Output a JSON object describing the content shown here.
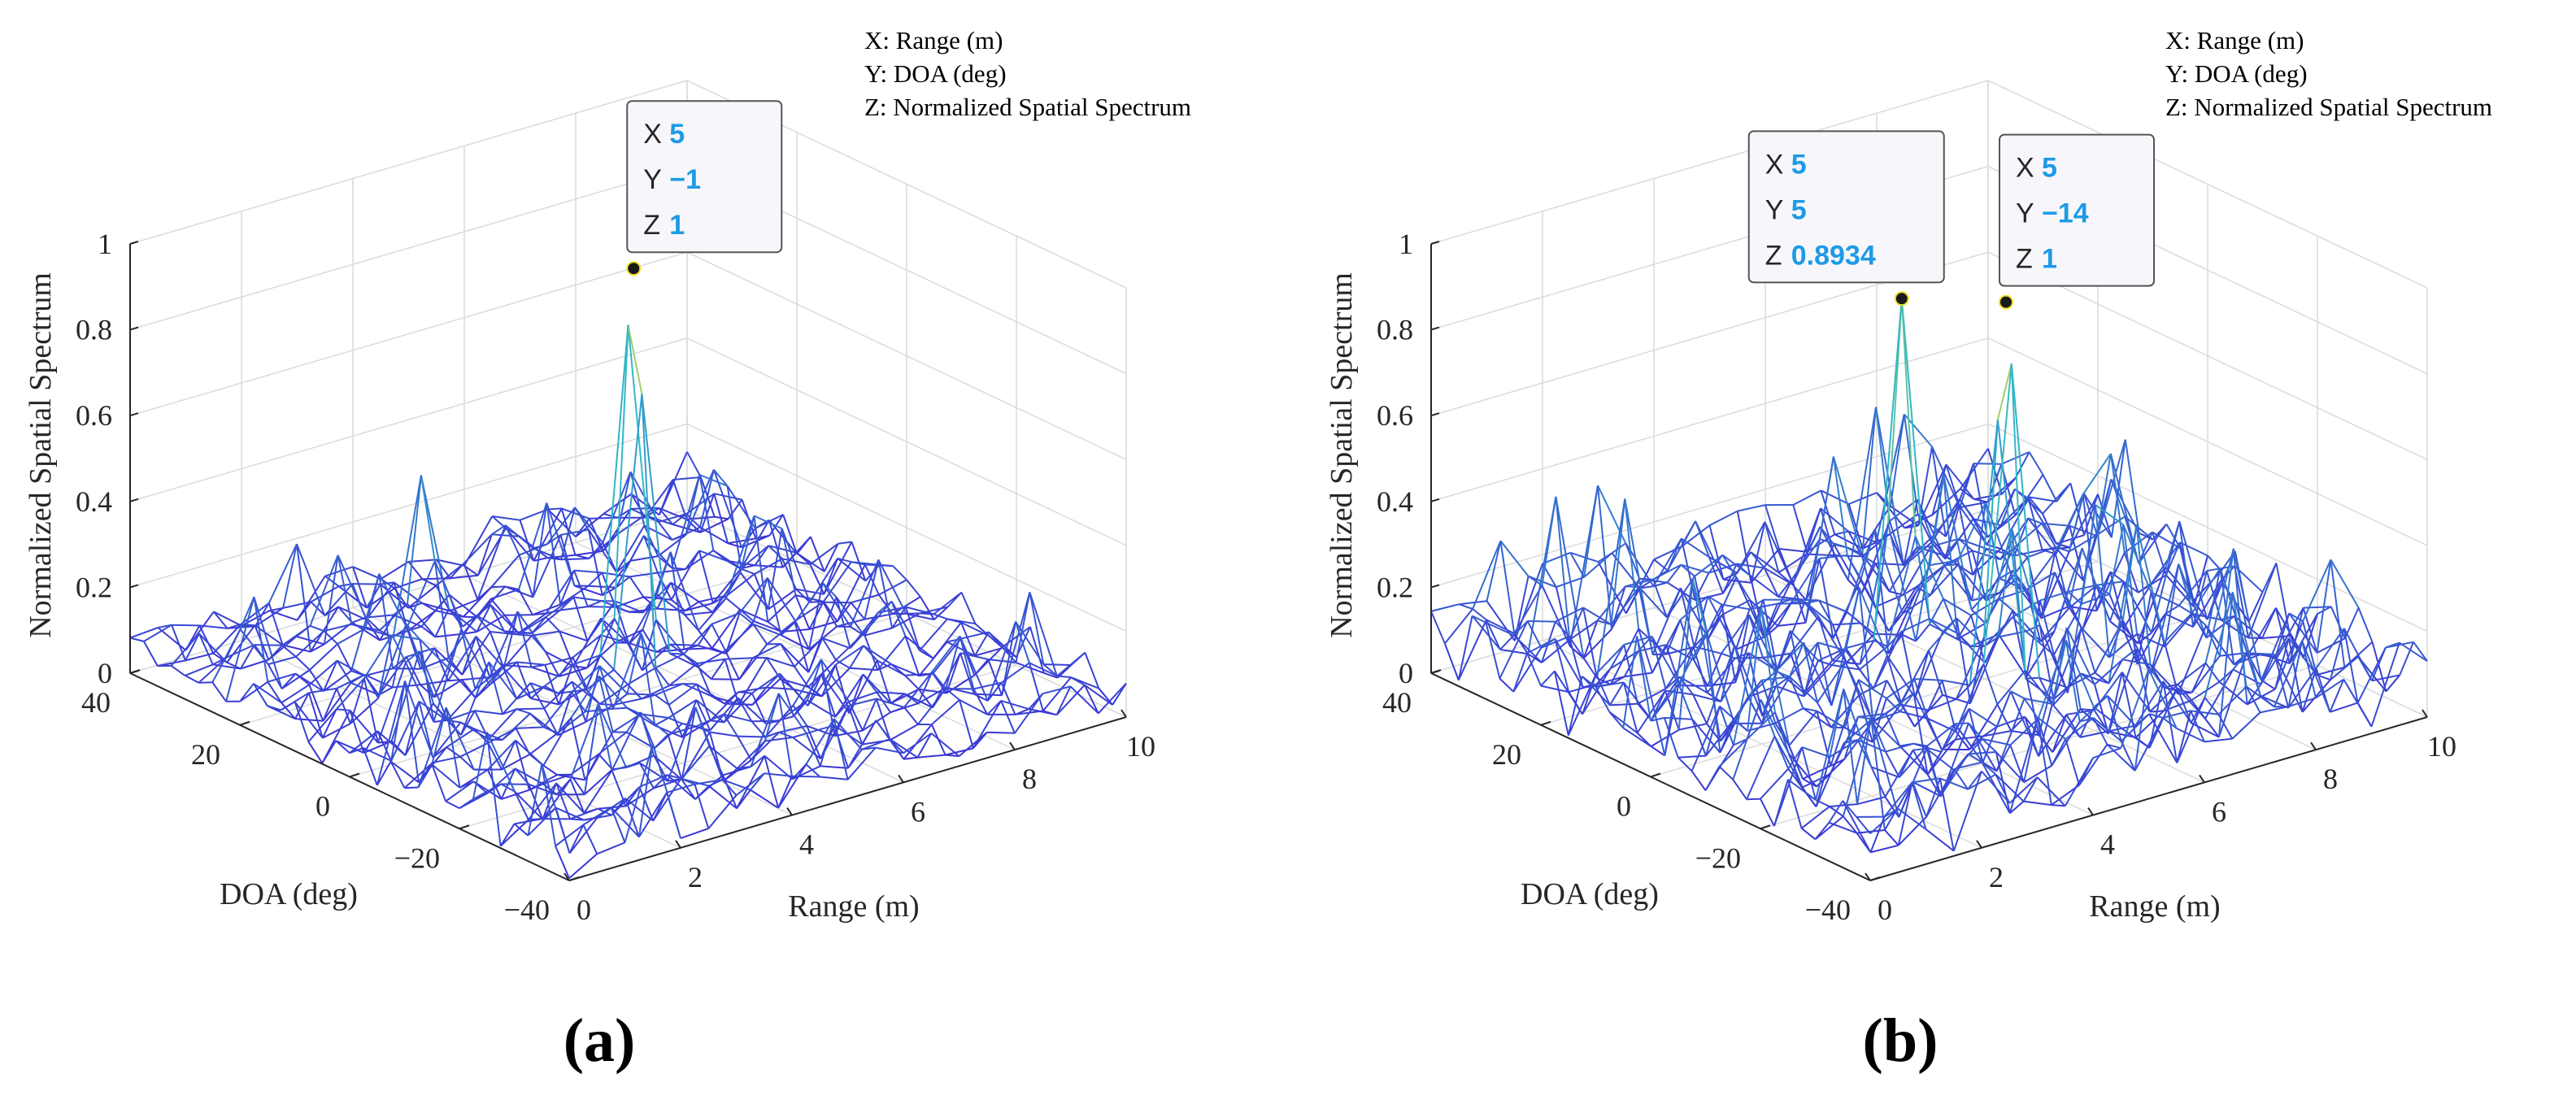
{
  "colors": {
    "low": "#3b2fd6",
    "mid": "#2fb7c8",
    "high": "#f1e12e",
    "datatip_value": "#1e9ae6"
  },
  "chart_data": [
    {
      "id": "a",
      "type": "mesh3d",
      "panel_label": "(a)",
      "legend": [
        "X: Range (m)",
        "Y: DOA (deg)",
        "Z: Normalized Spatial Spectrum"
      ],
      "xlabel": "Range (m)",
      "ylabel": "DOA (deg)",
      "zlabel": "Normalized Spatial Spectrum",
      "xlim": [
        0,
        10
      ],
      "ylim": [
        -40,
        40
      ],
      "zlim": [
        0,
        1
      ],
      "xticks": [
        "0",
        "2",
        "4",
        "6",
        "8",
        "10"
      ],
      "yticks": [
        "40",
        "20",
        "0",
        "−20",
        "−40"
      ],
      "zticks": [
        "0",
        "0.2",
        "0.4",
        "0.6",
        "0.8",
        "1"
      ],
      "peaks": [
        {
          "range": 5,
          "doa": -1,
          "value": 1.0
        },
        {
          "range": 3.5,
          "doa": 22,
          "value": 0.45
        }
      ],
      "noise_floor": 0.12,
      "datatips": [
        {
          "range": 5,
          "doa": -1,
          "value": 1,
          "label": [
            "X",
            "Y",
            "Z"
          ],
          "text": [
            "5",
            "−1",
            "1"
          ]
        }
      ]
    },
    {
      "id": "b",
      "type": "mesh3d",
      "panel_label": "(b)",
      "legend": [
        "X: Range (m)",
        "Y: DOA (deg)",
        "Z: Normalized Spatial Spectrum"
      ],
      "xlabel": "Range (m)",
      "ylabel": "DOA (deg)",
      "zlabel": "Normalized Spatial Spectrum",
      "xlim": [
        0,
        10
      ],
      "ylim": [
        -40,
        40
      ],
      "zlim": [
        0,
        1
      ],
      "xticks": [
        "0",
        "2",
        "4",
        "6",
        "8",
        "10"
      ],
      "yticks": [
        "40",
        "20",
        "0",
        "−20",
        "−40"
      ],
      "zticks": [
        "0",
        "0.2",
        "0.4",
        "0.6",
        "0.8",
        "1"
      ],
      "peaks": [
        {
          "range": 5,
          "doa": 5,
          "value": 0.8934
        },
        {
          "range": 5,
          "doa": -14,
          "value": 1.0
        }
      ],
      "noise_floor": 0.2,
      "datatips": [
        {
          "range": 5,
          "doa": 5,
          "value": 0.8934,
          "label": [
            "X",
            "Y",
            "Z"
          ],
          "text": [
            "5",
            "5",
            "0.8934"
          ]
        },
        {
          "range": 5,
          "doa": -14,
          "value": 1,
          "label": [
            "X",
            "Y",
            "Z"
          ],
          "text": [
            "5",
            "−14",
            "1"
          ]
        }
      ]
    }
  ]
}
